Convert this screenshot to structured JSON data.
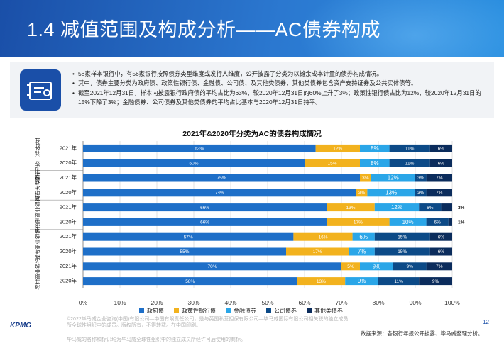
{
  "header": {
    "title": "1.4 减值范围及构成分析——AC债券构成"
  },
  "summary": {
    "bullets": [
      "58家样本银行中，有56家银行按照债券类型维度或发行人维度，公开披露了分类为以摊余成本计量的债券构成情况。",
      "其中，债券主要分类为政府债、政策性银行债、金融债、公司债、及其他类债券，其他类债券包含资产支持证券及公共实体债等。",
      "截至2021年12月31日，样本内披露银行政府债的平均占比为63%，较2020年12月31日的60%上升了3%；政策性银行债占比为12%，较2020年12月31日的15%下降了3%；金融债券、公司债券及其他类债券的平均占比基本与2020年12月31日持平。"
    ],
    "icon": "document-chart-icon"
  },
  "chart_data": {
    "type": "bar",
    "orientation": "horizontal",
    "stacked": true,
    "title": "2021年&2020年分类为AC的债券构成情况",
    "xlim": [
      0,
      100
    ],
    "x_ticks": [
      "0%",
      "10%",
      "20%",
      "30%",
      "40%",
      "50%",
      "60%",
      "70%",
      "80%",
      "90%",
      "100%"
    ],
    "grid": true,
    "legend_position": "bottom",
    "groups": [
      {
        "label": "银行平均（样本内披露",
        "years": [
          "2021年",
          "2020年"
        ]
      },
      {
        "label": "国有大型银行",
        "years": [
          "2021年",
          "2020年"
        ]
      },
      {
        "label": "股份制商业银行",
        "years": [
          "2021年",
          "2020年"
        ]
      },
      {
        "label": "城市商业银行",
        "years": [
          "2021年",
          "2020年"
        ]
      },
      {
        "label": "农村商业银行",
        "years": [
          "2021年",
          "2020年"
        ]
      }
    ],
    "series": [
      {
        "name": "政府债",
        "color": "#1e6fc8",
        "values": [
          63,
          60,
          75,
          74,
          66,
          66,
          57,
          55,
          70,
          58
        ],
        "labels": [
          "63%",
          "60%",
          "75%",
          "74%",
          "66%",
          "66%",
          "57%",
          "55%",
          "70%",
          "58%"
        ]
      },
      {
        "name": "政策性银行债",
        "color": "#f2b21e",
        "values": [
          12,
          15,
          3,
          3,
          13,
          17,
          16,
          17,
          5,
          13
        ],
        "labels": [
          "12%",
          "15%",
          "3%",
          "3%",
          "13%",
          "17%",
          "16%",
          "17%",
          "5%",
          "13%"
        ]
      },
      {
        "name": "金融债券",
        "color": "#2aa6e8",
        "values": [
          8,
          8,
          12,
          13,
          12,
          10,
          6,
          7,
          9,
          9
        ],
        "labels": [
          "8%",
          "8%",
          "12%",
          "13%",
          "12%",
          "10%",
          "6%",
          "7%",
          "9%",
          "9%"
        ]
      },
      {
        "name": "公司债券",
        "color": "#0c4a87",
        "values": [
          11,
          11,
          3,
          3,
          6,
          6,
          15,
          15,
          9,
          11
        ],
        "labels": [
          "11%",
          "11%",
          "3%",
          "3%",
          "6%",
          "6%",
          "15%",
          "15%",
          "9%",
          "11%"
        ]
      },
      {
        "name": "其他类债券",
        "color": "#0b2c5c",
        "values": [
          6,
          6,
          7,
          7,
          3,
          1,
          6,
          6,
          7,
          9
        ],
        "labels": [
          "6%",
          "6%",
          "7%",
          "7%",
          "3%",
          "1%",
          "6%",
          "6%",
          "7%",
          "9%"
        ]
      }
    ]
  },
  "footer": {
    "copyright": "©2022毕马威企业咨询(中国)有限公司—中国有限责任公司，是与英国私营担保有限公司—毕马威国际有限公司相关联的独立成员所全球性组织中的成员。版权所有，不得转载。在中国印刷。",
    "trademark": "毕马威的名称和标识均为毕马威全球性组织中的独立成员所经许可后使用的商标。",
    "logo": "KPMG",
    "page_number": "12",
    "source": "数据来源：各银行年报公开披露、毕马威整理分析。"
  }
}
